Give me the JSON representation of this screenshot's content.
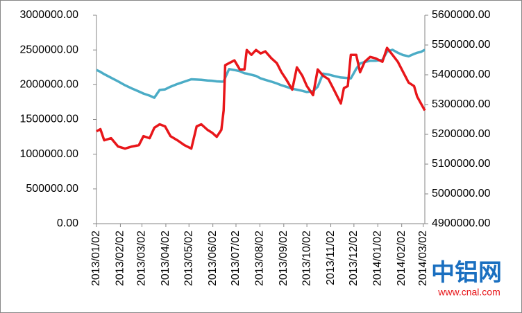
{
  "chart_data": {
    "type": "line",
    "x": [
      "2013/01/02",
      "2013/01/07",
      "2013/01/12",
      "2013/01/21",
      "2013/01/30",
      "2013/02/08",
      "2013/02/17",
      "2013/02/26",
      "2013/03/04",
      "2013/03/12",
      "2013/03/18",
      "2013/03/25",
      "2013/04/01",
      "2013/04/08",
      "2013/04/17",
      "2013/04/26",
      "2013/05/05",
      "2013/05/12",
      "2013/05/18",
      "2013/05/26",
      "2013/06/01",
      "2013/06/07",
      "2013/06/13",
      "2013/06/16",
      "2013/06/18",
      "2013/06/23",
      "2013/06/30",
      "2013/07/07",
      "2013/07/13",
      "2013/07/16",
      "2013/07/22",
      "2013/07/28",
      "2013/08/03",
      "2013/08/09",
      "2013/08/17",
      "2013/08/24",
      "2013/08/30",
      "2013/09/05",
      "2013/09/13",
      "2013/09/19",
      "2013/09/26",
      "2013/10/02",
      "2013/10/10",
      "2013/10/16",
      "2013/10/23",
      "2013/10/30",
      "2013/11/06",
      "2013/11/15",
      "2013/11/19",
      "2013/11/24",
      "2013/11/28",
      "2013/12/05",
      "2013/12/10",
      "2013/12/16",
      "2013/12/23",
      "2013/12/30",
      "2014/01/08",
      "2014/01/14",
      "2014/01/21",
      "2014/01/28",
      "2014/02/04",
      "2014/02/11",
      "2014/02/18",
      "2014/02/22",
      "2014/02/27",
      "2014/03/04"
    ],
    "xlim": [
      "2013/01/02",
      "2014/03/04"
    ],
    "xticks": [
      "2013/01/02",
      "2013/02/02",
      "2013/03/02",
      "2013/04/02",
      "2013/05/02",
      "2013/06/02",
      "2013/07/02",
      "2013/08/02",
      "2013/09/02",
      "2013/10/02",
      "2013/11/02",
      "2013/12/02",
      "2014/01/02",
      "2014/02/02",
      "2014/03/02"
    ],
    "series": [
      {
        "color": "#e8161a",
        "values": [
          1330000,
          1360000,
          1200000,
          1230000,
          1110000,
          1080000,
          1110000,
          1130000,
          1260000,
          1230000,
          1380000,
          1430000,
          1400000,
          1260000,
          1200000,
          1130000,
          1080000,
          1400000,
          1430000,
          1350000,
          1310000,
          1250000,
          1350000,
          1630000,
          2280000,
          2310000,
          2350000,
          2220000,
          2220000,
          2500000,
          2430000,
          2500000,
          2450000,
          2480000,
          2380000,
          2310000,
          2180000,
          2080000,
          1930000,
          2250000,
          2130000,
          1980000,
          1850000,
          2220000,
          2130000,
          2080000,
          1930000,
          1730000,
          1950000,
          1980000,
          2430000,
          2430000,
          2180000,
          2330000,
          2400000,
          2380000,
          2330000,
          2530000,
          2430000,
          2330000,
          2180000,
          2030000,
          1980000,
          1830000,
          1730000,
          1630000
        ]
      },
      {
        "color": "#4bacc6",
        "axis": "y2",
        "values": [
          5416000,
          5410000,
          5402000,
          5390000,
          5378000,
          5365000,
          5354000,
          5344000,
          5337000,
          5330000,
          5323000,
          5349000,
          5351000,
          5360000,
          5369000,
          5377000,
          5385000,
          5384000,
          5383000,
          5381000,
          5380000,
          5378000,
          5377000,
          5377000,
          5390000,
          5419000,
          5416000,
          5412000,
          5405000,
          5404000,
          5400000,
          5396000,
          5388000,
          5383000,
          5377000,
          5371000,
          5365000,
          5360000,
          5353000,
          5350000,
          5346000,
          5342000,
          5345000,
          5360000,
          5404000,
          5401000,
          5396000,
          5391000,
          5390000,
          5389000,
          5388000,
          5420000,
          5438000,
          5443000,
          5447000,
          5447000,
          5450000,
          5478000,
          5484000,
          5474000,
          5466000,
          5462000,
          5470000,
          5474000,
          5477000,
          5484000
        ]
      }
    ],
    "ylim": [
      0,
      3000000
    ],
    "yticks": [
      {
        "value": 0,
        "label": "0.00"
      },
      {
        "value": 500000,
        "label": "500000.00"
      },
      {
        "value": 1000000,
        "label": "1000000.00"
      },
      {
        "value": 1500000,
        "label": "1500000.00"
      },
      {
        "value": 2000000,
        "label": "2000000.00"
      },
      {
        "value": 2500000,
        "label": "2500000.00"
      },
      {
        "value": 3000000,
        "label": "3000000.00"
      }
    ],
    "y2lim": [
      4900000,
      5600000
    ],
    "y2ticks": [
      {
        "value": 4900000,
        "label": "4900000.00"
      },
      {
        "value": 5000000,
        "label": "5000000.00"
      },
      {
        "value": 5100000,
        "label": "5100000.00"
      },
      {
        "value": 5200000,
        "label": "5200000.00"
      },
      {
        "value": 5300000,
        "label": "5300000.00"
      },
      {
        "value": 5400000,
        "label": "5400000.00"
      },
      {
        "value": 5500000,
        "label": "5500000.00"
      },
      {
        "value": 5600000,
        "label": "5600000.00"
      }
    ],
    "grid": false
  },
  "watermark": {
    "logo": "中铝网",
    "url": "www.cnal.com"
  }
}
